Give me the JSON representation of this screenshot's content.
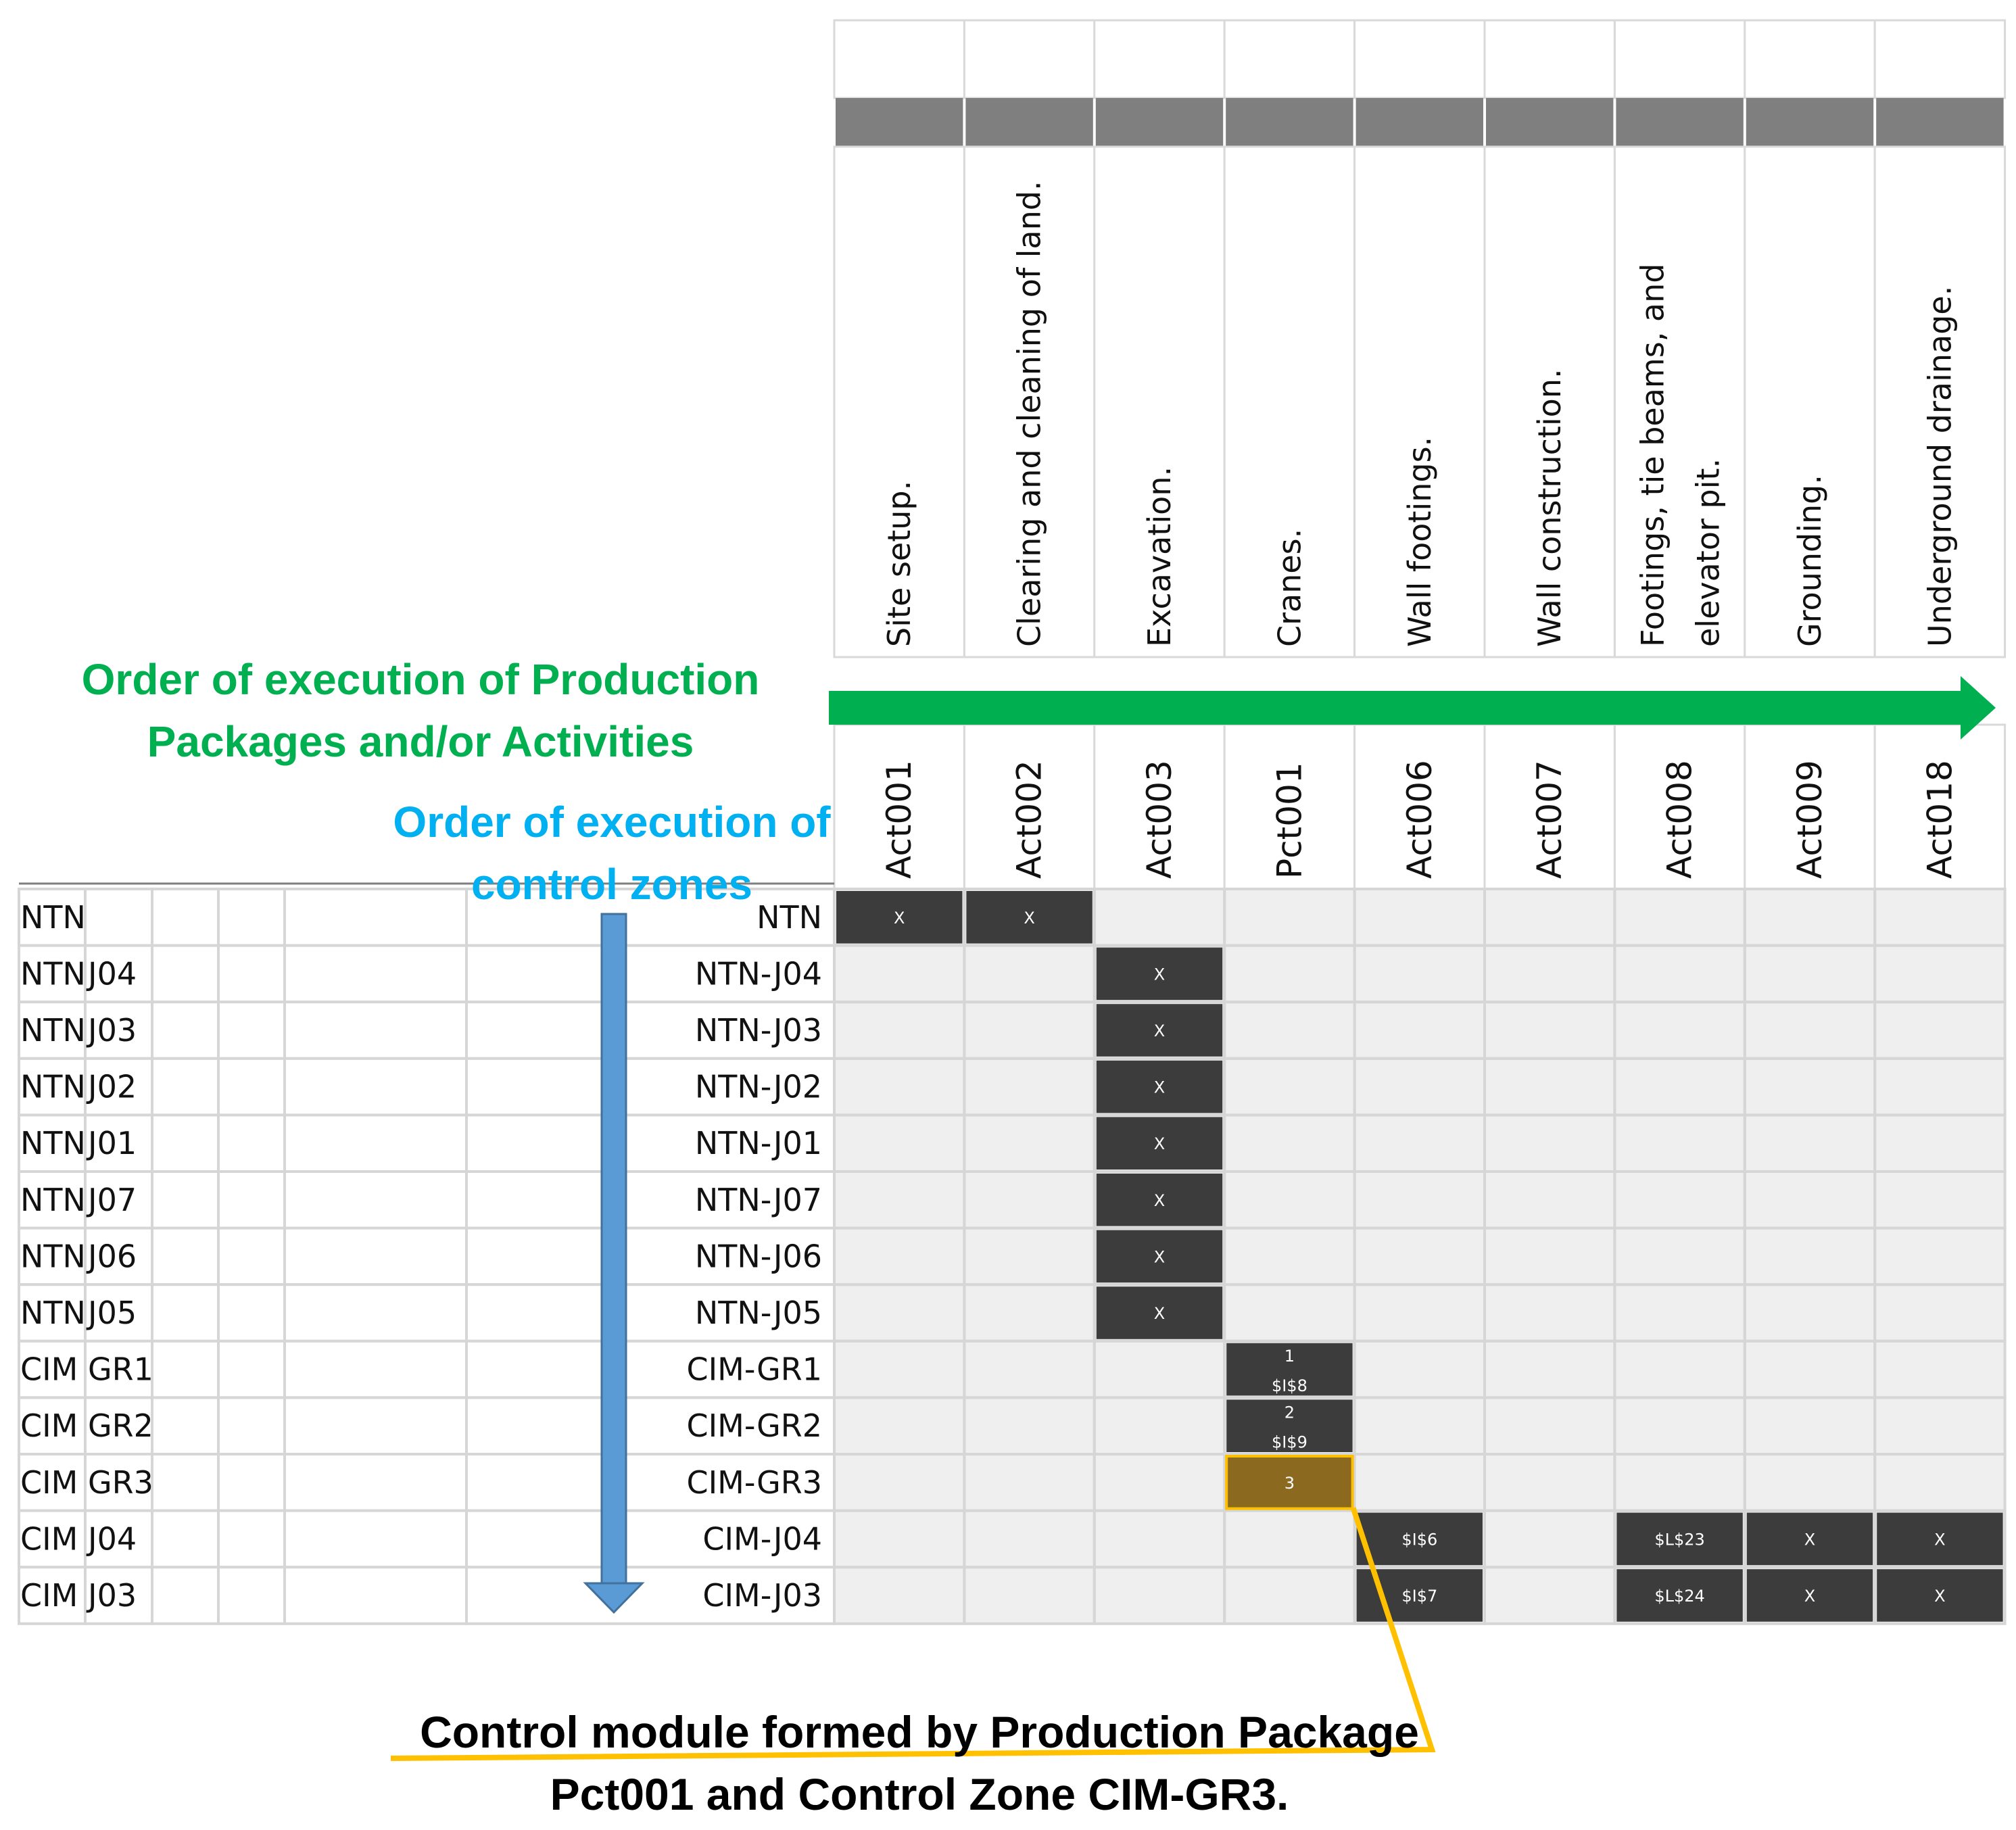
{
  "activities": [
    {
      "code": "Act001",
      "description": "Site setup."
    },
    {
      "code": "Act002",
      "description": "Clearing and cleaning of land."
    },
    {
      "code": "Act003",
      "description": "Excavation."
    },
    {
      "code": "Pct001",
      "description": "Cranes."
    },
    {
      "code": "Act006",
      "description": "Wall footings."
    },
    {
      "code": "Act007",
      "description": "Wall construction."
    },
    {
      "code": "Act008",
      "description": "Footings, tie beams, and elevator pit."
    },
    {
      "code": "Act009",
      "description": "Grounding."
    },
    {
      "code": "Act018",
      "description": "Underground drainage."
    }
  ],
  "zones": [
    {
      "prefix": "NTN",
      "suffix": "",
      "full": "NTN"
    },
    {
      "prefix": "NTN",
      "suffix": "J04",
      "full": "NTN-J04"
    },
    {
      "prefix": "NTN",
      "suffix": "J03",
      "full": "NTN-J03"
    },
    {
      "prefix": "NTN",
      "suffix": "J02",
      "full": "NTN-J02"
    },
    {
      "prefix": "NTN",
      "suffix": "J01",
      "full": "NTN-J01"
    },
    {
      "prefix": "NTN",
      "suffix": "J07",
      "full": "NTN-J07"
    },
    {
      "prefix": "NTN",
      "suffix": "J06",
      "full": "NTN-J06"
    },
    {
      "prefix": "NTN",
      "suffix": "J05",
      "full": "NTN-J05"
    },
    {
      "prefix": "CIM",
      "suffix": "GR1",
      "full": "CIM-GR1"
    },
    {
      "prefix": "CIM",
      "suffix": "GR2",
      "full": "CIM-GR2"
    },
    {
      "prefix": "CIM",
      "suffix": "GR3",
      "full": "CIM-GR3"
    },
    {
      "prefix": "CIM",
      "suffix": "J04",
      "full": "CIM-J04"
    },
    {
      "prefix": "CIM",
      "suffix": "J03",
      "full": "CIM-J03"
    }
  ],
  "marks": [
    {
      "row": 0,
      "col": 0,
      "lines": [
        "X"
      ]
    },
    {
      "row": 0,
      "col": 1,
      "lines": [
        "X"
      ]
    },
    {
      "row": 1,
      "col": 2,
      "lines": [
        "X"
      ]
    },
    {
      "row": 2,
      "col": 2,
      "lines": [
        "X"
      ]
    },
    {
      "row": 3,
      "col": 2,
      "lines": [
        "X"
      ]
    },
    {
      "row": 4,
      "col": 2,
      "lines": [
        "X"
      ]
    },
    {
      "row": 5,
      "col": 2,
      "lines": [
        "X"
      ]
    },
    {
      "row": 6,
      "col": 2,
      "lines": [
        "X"
      ]
    },
    {
      "row": 7,
      "col": 2,
      "lines": [
        "X"
      ]
    },
    {
      "row": 8,
      "col": 3,
      "lines": [
        "1",
        "$I$8"
      ]
    },
    {
      "row": 9,
      "col": 3,
      "lines": [
        "2",
        "$I$9"
      ]
    },
    {
      "row": 10,
      "col": 3,
      "lines": [
        "3"
      ],
      "highlight": true
    },
    {
      "row": 11,
      "col": 4,
      "lines": [
        "$I$6"
      ]
    },
    {
      "row": 11,
      "col": 6,
      "lines": [
        "$L$23"
      ]
    },
    {
      "row": 11,
      "col": 7,
      "lines": [
        "X"
      ]
    },
    {
      "row": 11,
      "col": 8,
      "lines": [
        "X"
      ]
    },
    {
      "row": 12,
      "col": 4,
      "lines": [
        "$I$7"
      ]
    },
    {
      "row": 12,
      "col": 6,
      "lines": [
        "$L$24"
      ]
    },
    {
      "row": 12,
      "col": 7,
      "lines": [
        "X"
      ]
    },
    {
      "row": 12,
      "col": 8,
      "lines": [
        "X"
      ]
    }
  ],
  "annotations": {
    "production_order": [
      "Order of execution of Production",
      "Packages and/or Activities"
    ],
    "zone_order": [
      "Order of execution of",
      "control zones"
    ],
    "control_module": [
      "Control module formed by Production Package",
      "Pct001 and Control Zone CIM-GR3."
    ]
  },
  "colors": {
    "green_arrow": "#00b050",
    "blue_arrow": "#5b9bd5",
    "orange_line": "#ffc000",
    "dark_cell": "#3c3c3c",
    "highlight_cell": "#8b6a1f",
    "grid_bg": "#efefef",
    "header_band": "#7f7f7f"
  }
}
